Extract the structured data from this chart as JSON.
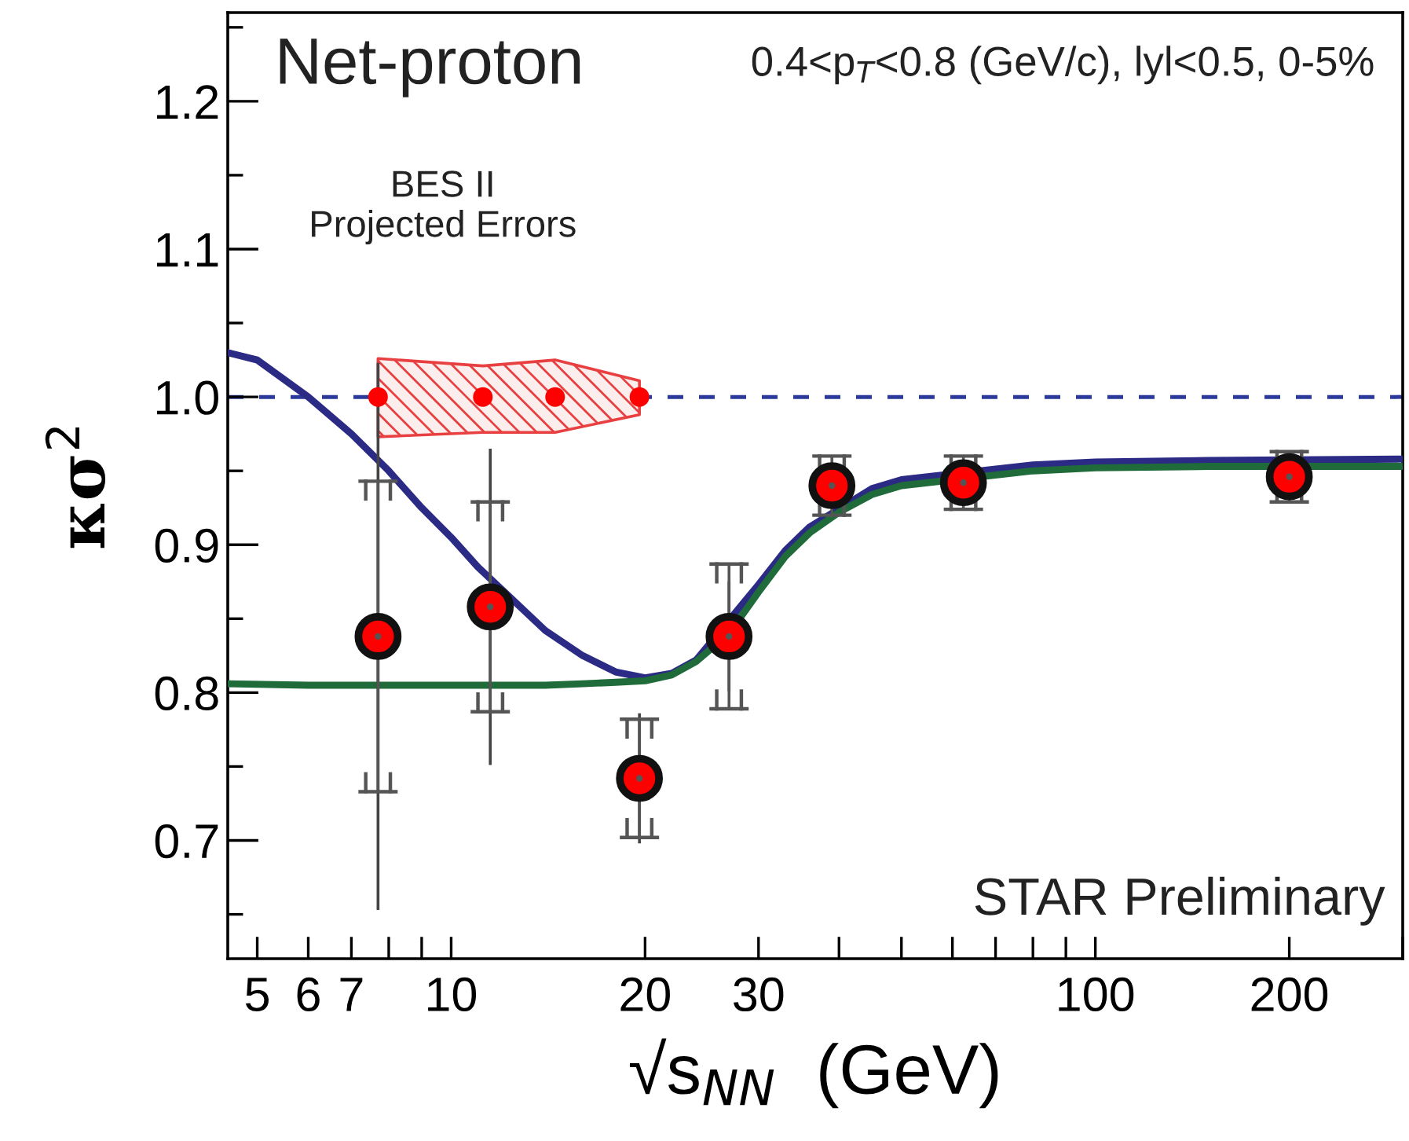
{
  "chart_data": {
    "type": "scatter",
    "xlabel": "√s$_{NN}$  (GeV)",
    "ylabel": "κσ$^{2}$",
    "log": "x",
    "xlim": [
      4.5,
      300
    ],
    "ylim": [
      0.62,
      1.26
    ],
    "xticks": [
      5,
      6,
      7,
      {
        "value": 8,
        "label": null
      },
      {
        "value": 9,
        "label": null
      },
      10,
      20,
      30,
      {
        "value": 40,
        "label": null
      },
      {
        "value": 50,
        "label": null
      },
      {
        "value": 60,
        "label": null
      },
      {
        "value": 70,
        "label": null
      },
      {
        "value": 80,
        "label": null
      },
      {
        "value": 90,
        "label": null
      },
      100,
      200,
      {
        "value": 300,
        "label": null
      }
    ],
    "yticks": [
      {
        "value": 0.65,
        "label": null
      },
      {
        "value": 0.7,
        "label": "0.7"
      },
      {
        "value": 0.75,
        "label": null
      },
      {
        "value": 0.8,
        "label": "0.8"
      },
      {
        "value": 0.85,
        "label": null
      },
      {
        "value": 0.9,
        "label": "0.9"
      },
      {
        "value": 0.95,
        "label": null
      },
      {
        "value": 1.0,
        "label": "1.0"
      },
      {
        "value": 1.05,
        "label": null
      },
      {
        "value": 1.1,
        "label": "1.1"
      },
      {
        "value": 1.15,
        "label": null
      },
      {
        "value": 1.2,
        "label": "1.2"
      },
      {
        "value": 1.25,
        "label": null
      }
    ],
    "grid": false,
    "series": [
      {
        "type": "line",
        "color": "#2b2a84",
        "x": [
          4.5,
          5,
          6,
          7,
          8,
          9,
          10,
          11,
          14,
          16,
          18,
          20,
          22,
          24,
          30,
          33,
          36,
          45,
          50,
          80,
          100,
          150,
          300
        ],
        "values": [
          1.03,
          1.025,
          1.0,
          0.975,
          0.95,
          0.925,
          0.905,
          0.885,
          0.842,
          0.825,
          0.814,
          0.81,
          0.813,
          0.822,
          0.873,
          0.896,
          0.912,
          0.938,
          0.944,
          0.954,
          0.956,
          0.957,
          0.958
        ]
      },
      {
        "type": "line",
        "color": "#1f6b3a",
        "x": [
          4.5,
          6,
          8,
          10,
          12,
          14,
          16,
          18,
          20,
          22,
          24,
          27,
          30,
          33,
          36,
          40,
          45,
          50,
          80,
          100,
          150,
          300
        ],
        "values": [
          0.806,
          0.805,
          0.805,
          0.805,
          0.805,
          0.805,
          0.806,
          0.807,
          0.808,
          0.812,
          0.821,
          0.84,
          0.868,
          0.892,
          0.908,
          0.922,
          0.934,
          0.94,
          0.95,
          0.952,
          0.953,
          0.953
        ]
      },
      {
        "color": "#ff0000",
        "marker": "circle",
        "x": [
          7.7,
          11.2,
          14.5,
          19.6
        ],
        "values": [
          1.0,
          1.0,
          1.0,
          1.0
        ],
        "lower": [
          0.973,
          0.976,
          0.976,
          0.988
        ],
        "upper": [
          1.026,
          1.021,
          1.025,
          1.011
        ]
      },
      {
        "color": "#ff0000",
        "marker": "circle",
        "x": [
          7.7,
          11.5,
          19.6,
          27,
          39,
          62.4,
          200
        ],
        "values": [
          0.838,
          0.858,
          0.742,
          0.838,
          0.94,
          0.942,
          0.946
        ],
        "errors": [
          0.185,
          0.107,
          0.044,
          0.037,
          null,
          null,
          null
        ]
      },
      {
        "color": "#555555",
        "marker": "circle",
        "x": [
          7.7,
          11.5,
          19.6,
          27,
          39,
          62.4,
          200
        ],
        "values": [
          0.838,
          0.858,
          0.742,
          0.838,
          0.94,
          0.942,
          0.946
        ],
        "errors": [
          0.105,
          0.071,
          0.04,
          0.049,
          0.02,
          0.018,
          0.017
        ]
      }
    ],
    "ref_lines": [
      {
        "axis": "y",
        "value": 1.0,
        "color": "#2b3a9a",
        "line_style": "dashed"
      }
    ],
    "annotations": [
      "Net-proton",
      "0.4<p$_{T}$<0.8 (GeV/c), lyl<0.5, 0-5%",
      "BES II\nProjected Errors",
      "STAR Preliminary"
    ]
  }
}
